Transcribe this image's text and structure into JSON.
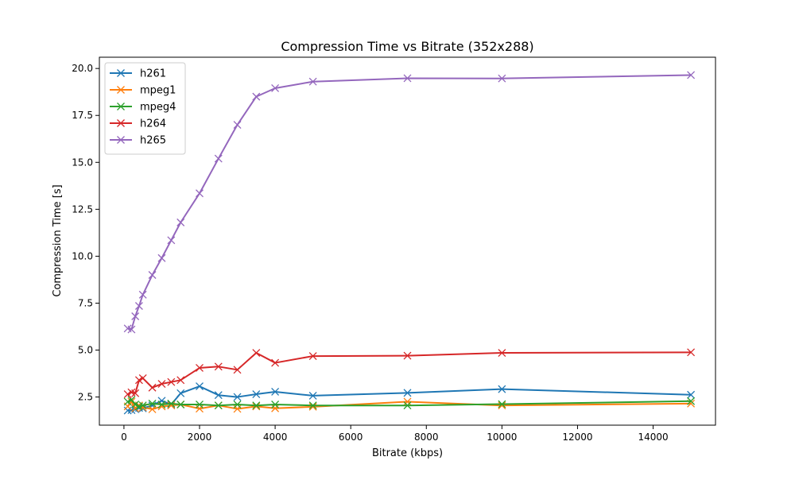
{
  "chart_data": {
    "type": "line",
    "title": "Compression Time vs Bitrate (352x288)",
    "xlabel": "Bitrate (kbps)",
    "ylabel": "Compression Time [s]",
    "xlim": [
      -650,
      15650
    ],
    "ylim": [
      1.0,
      20.6
    ],
    "xticks": [
      0,
      2000,
      4000,
      6000,
      8000,
      10000,
      12000,
      14000
    ],
    "yticks": [
      2.5,
      5.0,
      7.5,
      10.0,
      12.5,
      15.0,
      17.5,
      20.0
    ],
    "xtick_labels": [
      "0",
      "2000",
      "4000",
      "6000",
      "8000",
      "10000",
      "12000",
      "14000"
    ],
    "ytick_labels": [
      "2.5",
      "5.0",
      "7.5",
      "10.0",
      "12.5",
      "15.0",
      "17.5",
      "20.0"
    ],
    "grid": false,
    "legend_position": "upper-left",
    "marker": "x",
    "x": [
      100,
      200,
      300,
      400,
      500,
      750,
      1000,
      1250,
      1500,
      2000,
      2500,
      3000,
      3500,
      4000,
      5000,
      7500,
      10000,
      15000
    ],
    "series": [
      {
        "name": "h261",
        "color": "#1f77b4",
        "values": [
          1.78,
          1.8,
          1.85,
          1.92,
          1.9,
          2.05,
          2.3,
          2.1,
          2.7,
          3.07,
          2.6,
          2.5,
          2.65,
          2.78,
          2.57,
          2.72,
          2.92,
          2.62
        ]
      },
      {
        "name": "mpeg1",
        "color": "#ff7f0e",
        "values": [
          2.0,
          2.25,
          1.9,
          2.05,
          1.95,
          1.85,
          2.0,
          2.05,
          2.1,
          1.88,
          2.05,
          1.87,
          2.0,
          1.9,
          1.98,
          2.25,
          2.05,
          2.15
        ]
      },
      {
        "name": "mpeg4",
        "color": "#2ca02c",
        "values": [
          2.25,
          2.35,
          2.1,
          2.0,
          2.05,
          2.15,
          2.1,
          2.15,
          2.1,
          2.1,
          2.05,
          2.1,
          2.05,
          2.1,
          2.05,
          2.05,
          2.12,
          2.28
        ]
      },
      {
        "name": "h264",
        "color": "#d62728",
        "values": [
          2.65,
          2.75,
          2.7,
          3.4,
          3.5,
          3.0,
          3.2,
          3.3,
          3.4,
          4.05,
          4.12,
          3.95,
          4.85,
          4.32,
          4.68,
          4.7,
          4.85,
          4.88
        ]
      },
      {
        "name": "h265",
        "color": "#9467bd",
        "values": [
          6.15,
          6.1,
          6.8,
          7.35,
          7.95,
          9.0,
          9.9,
          10.85,
          11.8,
          13.35,
          15.2,
          17.0,
          18.5,
          18.95,
          19.3,
          19.48,
          19.47,
          19.65
        ]
      }
    ]
  }
}
